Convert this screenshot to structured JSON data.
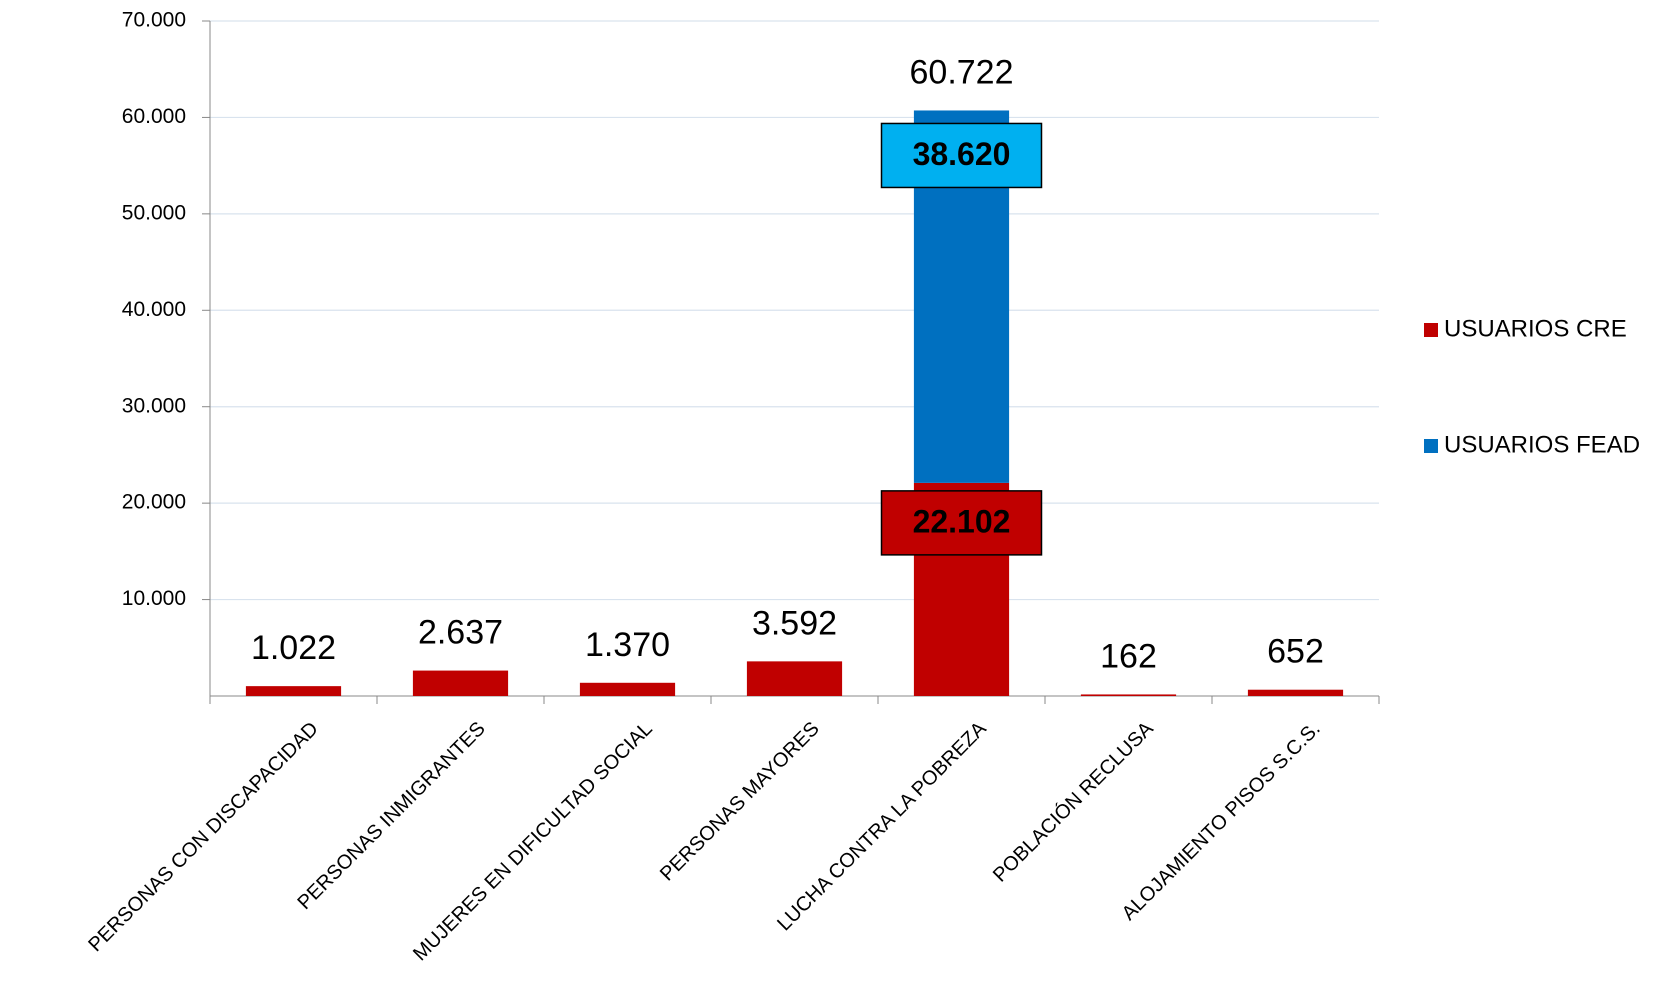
{
  "chart_data": {
    "type": "stacked_bar",
    "categories": [
      "PERSONAS CON DISCAPACIDAD",
      "PERSONAS INMIGRANTES",
      "MUJERES EN DIFICULTAD SOCIAL",
      "PERSONAS MAYORES",
      "LUCHA CONTRA LA POBREZA",
      "POBLACIÓN RECLUSA",
      "ALOJAMIENTO PISOS S.C.S."
    ],
    "series": [
      {
        "name": "USUARIOS CRE",
        "color": "#c00000",
        "label_box_color": "#c00000",
        "values": [
          1022,
          2637,
          1370,
          3592,
          22102,
          162,
          652
        ],
        "value_labels": [
          null,
          null,
          null,
          null,
          "22.102",
          null,
          null
        ]
      },
      {
        "name": "USUARIOS FEAD",
        "color": "#0070c0",
        "label_box_color": "#00b0f0",
        "values": [
          null,
          null,
          null,
          null,
          38620,
          null,
          null
        ],
        "value_labels": [
          null,
          null,
          null,
          null,
          "38.620",
          null,
          null
        ]
      }
    ],
    "totals": {
      "values": [
        1022,
        2637,
        1370,
        3592,
        60722,
        162,
        652
      ],
      "labels": [
        "1.022",
        "2.637",
        "1.370",
        "3.592",
        "60.722",
        "162",
        "652"
      ]
    },
    "ylim": [
      0,
      70000
    ],
    "yticks": [
      {
        "value": 10000,
        "label": "10.000"
      },
      {
        "value": 20000,
        "label": "20.000"
      },
      {
        "value": 30000,
        "label": "30.000"
      },
      {
        "value": 40000,
        "label": "40.000"
      },
      {
        "value": 50000,
        "label": "50.000"
      },
      {
        "value": 60000,
        "label": "60.000"
      },
      {
        "value": 70000,
        "label": "70.000"
      }
    ],
    "grid": true,
    "legend": "right"
  }
}
